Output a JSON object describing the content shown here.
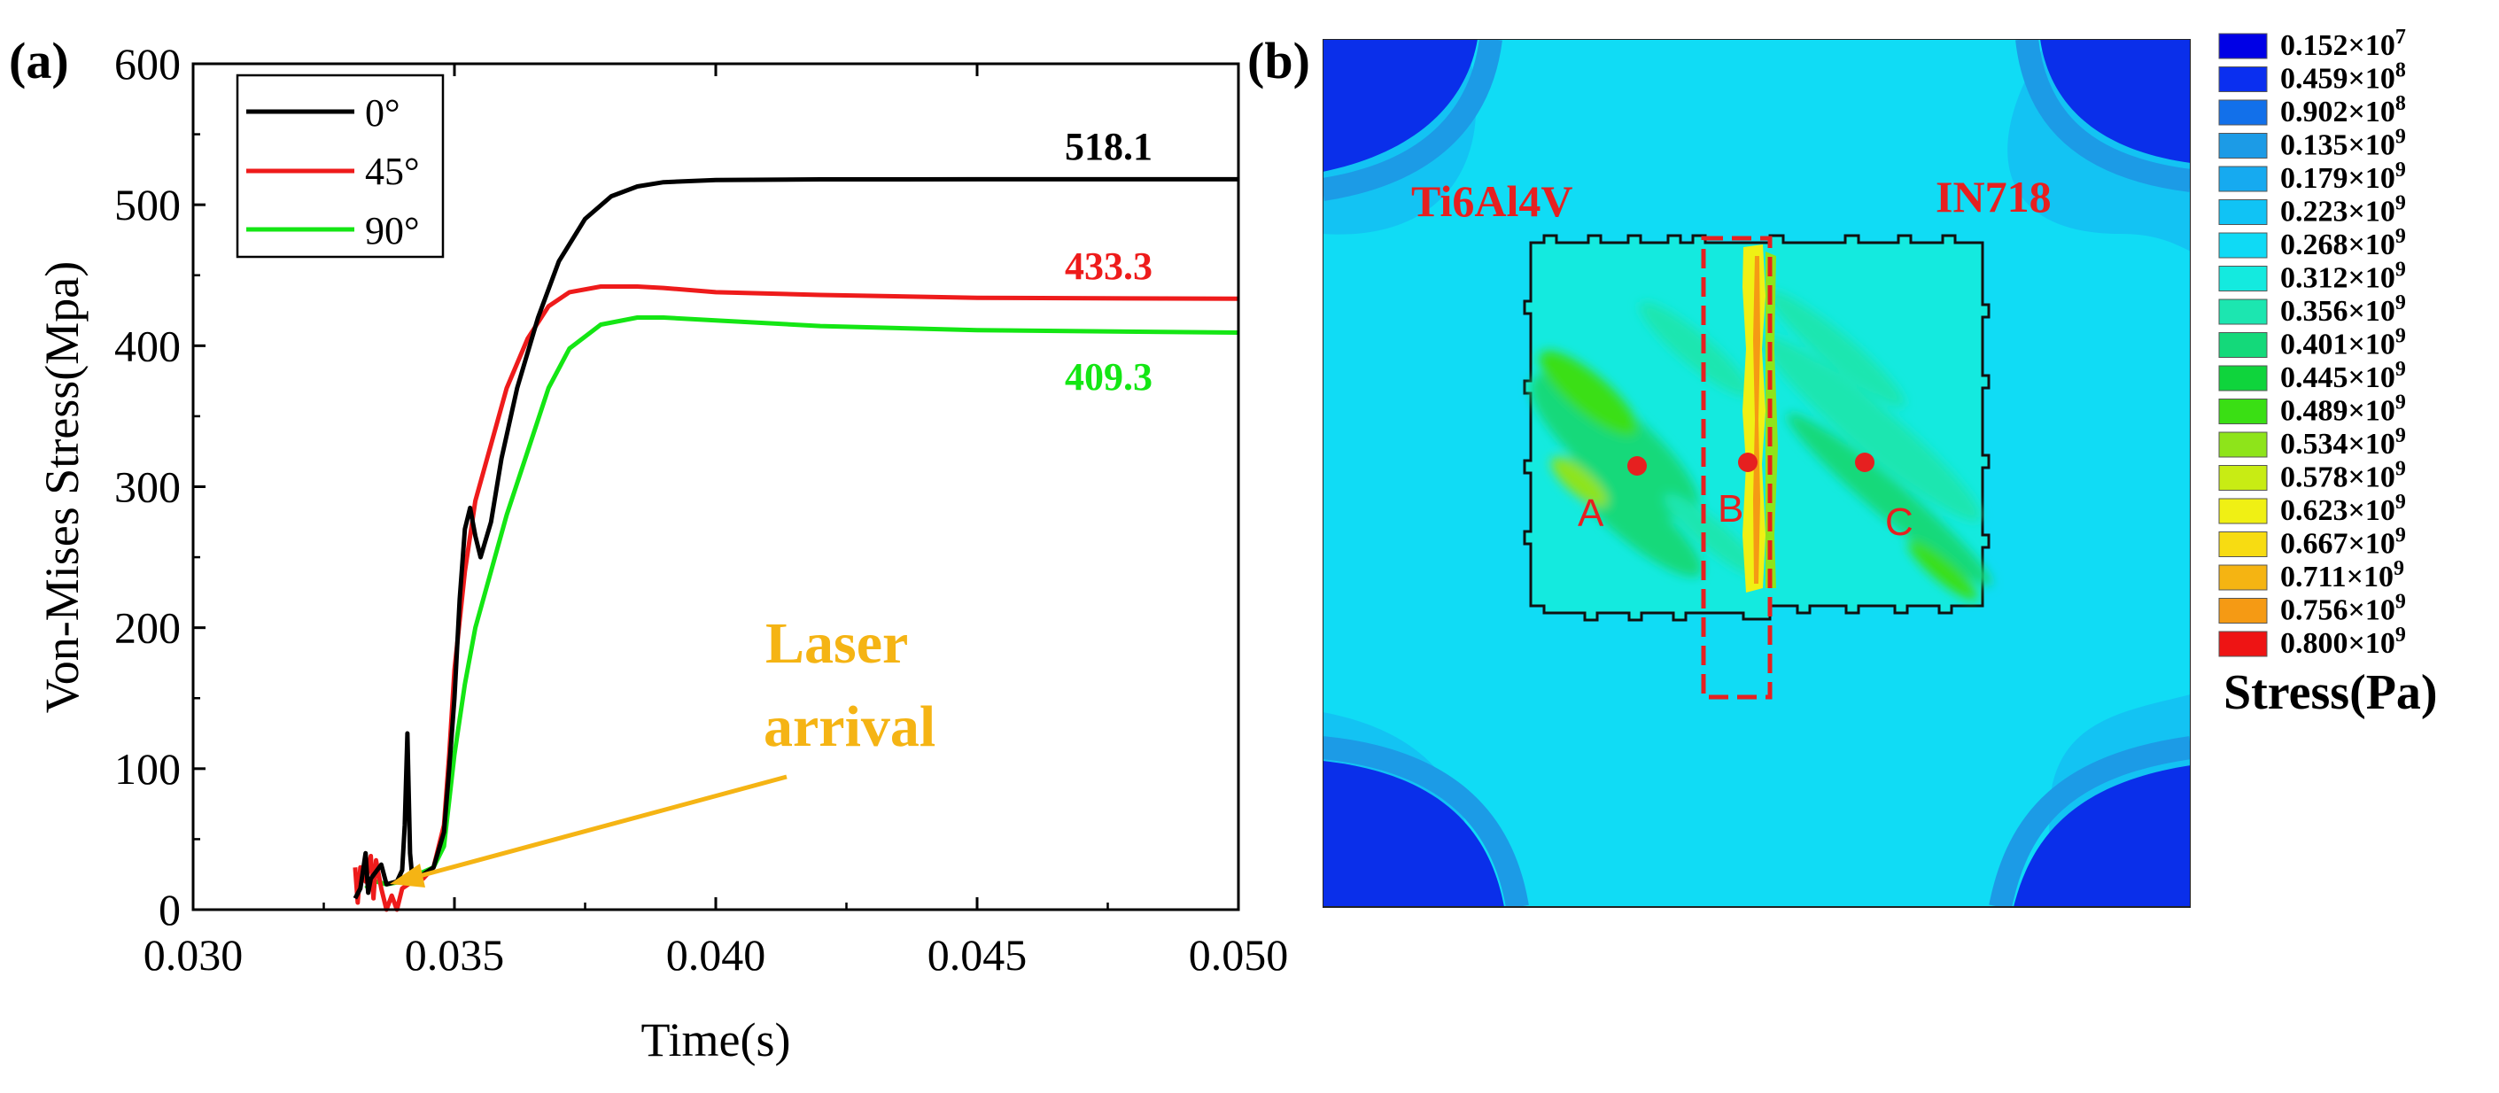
{
  "panel_a": {
    "label": "(a)"
  },
  "panel_b": {
    "label": "(b)",
    "left_material": "Ti6Al4V",
    "right_material": "IN718",
    "points": [
      "A",
      "B",
      "C"
    ]
  },
  "colorbar": {
    "title": "Stress(Pa)",
    "entries": [
      {
        "mantissa": "0.152×10",
        "exp": "7",
        "color": "#0000e6"
      },
      {
        "mantissa": "0.459×10",
        "exp": "8",
        "color": "#0a2ff0"
      },
      {
        "mantissa": "0.902×10",
        "exp": "8",
        "color": "#1270ea"
      },
      {
        "mantissa": "0.135×10",
        "exp": "9",
        "color": "#1c9be6"
      },
      {
        "mantissa": "0.179×10",
        "exp": "9",
        "color": "#16aaf0"
      },
      {
        "mantissa": "0.223×10",
        "exp": "9",
        "color": "#10c3f5"
      },
      {
        "mantissa": "0.268×10",
        "exp": "9",
        "color": "#0fdaf5"
      },
      {
        "mantissa": "0.312×10",
        "exp": "9",
        "color": "#14eadf"
      },
      {
        "mantissa": "0.356×10",
        "exp": "9",
        "color": "#1ce6b0"
      },
      {
        "mantissa": "0.401×10",
        "exp": "9",
        "color": "#14d97a"
      },
      {
        "mantissa": "0.445×10",
        "exp": "9",
        "color": "#0fd43c"
      },
      {
        "mantissa": "0.489×10",
        "exp": "9",
        "color": "#3adf14"
      },
      {
        "mantissa": "0.534×10",
        "exp": "9",
        "color": "#8ee41a"
      },
      {
        "mantissa": "0.578×10",
        "exp": "9",
        "color": "#c8ec14"
      },
      {
        "mantissa": "0.623×10",
        "exp": "9",
        "color": "#f0f014"
      },
      {
        "mantissa": "0.667×10",
        "exp": "9",
        "color": "#f7dc12"
      },
      {
        "mantissa": "0.711×10",
        "exp": "9",
        "color": "#f5b412"
      },
      {
        "mantissa": "0.756×10",
        "exp": "9",
        "color": "#f59a14"
      },
      {
        "mantissa": "0.800×10",
        "exp": "9",
        "color": "#ee1414"
      }
    ]
  },
  "chart_data": {
    "type": "line",
    "xlabel": "Time(s)",
    "ylabel": "Von-Mises Stress(Mpa)",
    "xlim": [
      0.03,
      0.05
    ],
    "ylim": [
      0,
      600
    ],
    "xticks": [
      0.03,
      0.035,
      0.04,
      0.045,
      0.05
    ],
    "xtick_labels": [
      "0.030",
      "0.035",
      "0.040",
      "0.045",
      "0.050"
    ],
    "yticks": [
      0,
      100,
      200,
      300,
      400,
      500,
      600
    ],
    "ytick_labels": [
      "0",
      "100",
      "200",
      "300",
      "400",
      "500",
      "600"
    ],
    "legend_position": "top-left",
    "series": [
      {
        "name": "0°",
        "color": "#000000",
        "final_label": "518.1",
        "points": [
          [
            0.0331,
            8
          ],
          [
            0.0332,
            15
          ],
          [
            0.0333,
            40
          ],
          [
            0.03335,
            12
          ],
          [
            0.0334,
            22
          ],
          [
            0.0336,
            32
          ],
          [
            0.0337,
            18
          ],
          [
            0.0339,
            20
          ],
          [
            0.034,
            28
          ],
          [
            0.03405,
            60
          ],
          [
            0.0341,
            125
          ],
          [
            0.03415,
            40
          ],
          [
            0.0342,
            20
          ],
          [
            0.0344,
            25
          ],
          [
            0.0346,
            30
          ],
          [
            0.0348,
            55
          ],
          [
            0.0349,
            100
          ],
          [
            0.035,
            150
          ],
          [
            0.0351,
            220
          ],
          [
            0.0352,
            270
          ],
          [
            0.0353,
            285
          ],
          [
            0.0354,
            265
          ],
          [
            0.0355,
            250
          ],
          [
            0.0357,
            275
          ],
          [
            0.0359,
            320
          ],
          [
            0.0362,
            370
          ],
          [
            0.0366,
            420
          ],
          [
            0.037,
            460
          ],
          [
            0.0375,
            490
          ],
          [
            0.038,
            506
          ],
          [
            0.0385,
            513
          ],
          [
            0.039,
            516
          ],
          [
            0.04,
            517.5
          ],
          [
            0.042,
            518
          ],
          [
            0.045,
            518.1
          ],
          [
            0.05,
            518.1
          ]
        ]
      },
      {
        "name": "45°",
        "color": "#ee1b1b",
        "final_label": "433.3",
        "points": [
          [
            0.0331,
            30
          ],
          [
            0.03315,
            5
          ],
          [
            0.0332,
            30
          ],
          [
            0.0333,
            20
          ],
          [
            0.0334,
            38
          ],
          [
            0.03345,
            8
          ],
          [
            0.0335,
            35
          ],
          [
            0.0336,
            15
          ],
          [
            0.0337,
            0
          ],
          [
            0.0338,
            10
          ],
          [
            0.0339,
            0
          ],
          [
            0.034,
            15
          ],
          [
            0.0342,
            20
          ],
          [
            0.0344,
            22
          ],
          [
            0.0346,
            30
          ],
          [
            0.0348,
            60
          ],
          [
            0.0349,
            110
          ],
          [
            0.035,
            170
          ],
          [
            0.0352,
            240
          ],
          [
            0.0354,
            290
          ],
          [
            0.0357,
            330
          ],
          [
            0.036,
            370
          ],
          [
            0.0364,
            405
          ],
          [
            0.0368,
            428
          ],
          [
            0.0372,
            438
          ],
          [
            0.0378,
            442
          ],
          [
            0.0385,
            442
          ],
          [
            0.039,
            441
          ],
          [
            0.04,
            438
          ],
          [
            0.042,
            436
          ],
          [
            0.045,
            434
          ],
          [
            0.05,
            433.3
          ]
        ]
      },
      {
        "name": "90°",
        "color": "#14e614",
        "final_label": "409.3",
        "points": [
          [
            0.0333,
            15
          ],
          [
            0.0335,
            20
          ],
          [
            0.0337,
            18
          ],
          [
            0.034,
            20
          ],
          [
            0.0343,
            25
          ],
          [
            0.0346,
            30
          ],
          [
            0.0348,
            45
          ],
          [
            0.035,
            110
          ],
          [
            0.0352,
            160
          ],
          [
            0.0354,
            200
          ],
          [
            0.0357,
            240
          ],
          [
            0.036,
            280
          ],
          [
            0.0364,
            325
          ],
          [
            0.0368,
            370
          ],
          [
            0.0372,
            398
          ],
          [
            0.0378,
            415
          ],
          [
            0.0385,
            420
          ],
          [
            0.039,
            420
          ],
          [
            0.04,
            418
          ],
          [
            0.042,
            414
          ],
          [
            0.045,
            411
          ],
          [
            0.05,
            409.3
          ]
        ]
      }
    ],
    "annotations": [
      {
        "text_lines": [
          "Laser",
          "arrival"
        ],
        "color": "#f5b414",
        "x": 0.0342,
        "y": 20
      }
    ]
  }
}
